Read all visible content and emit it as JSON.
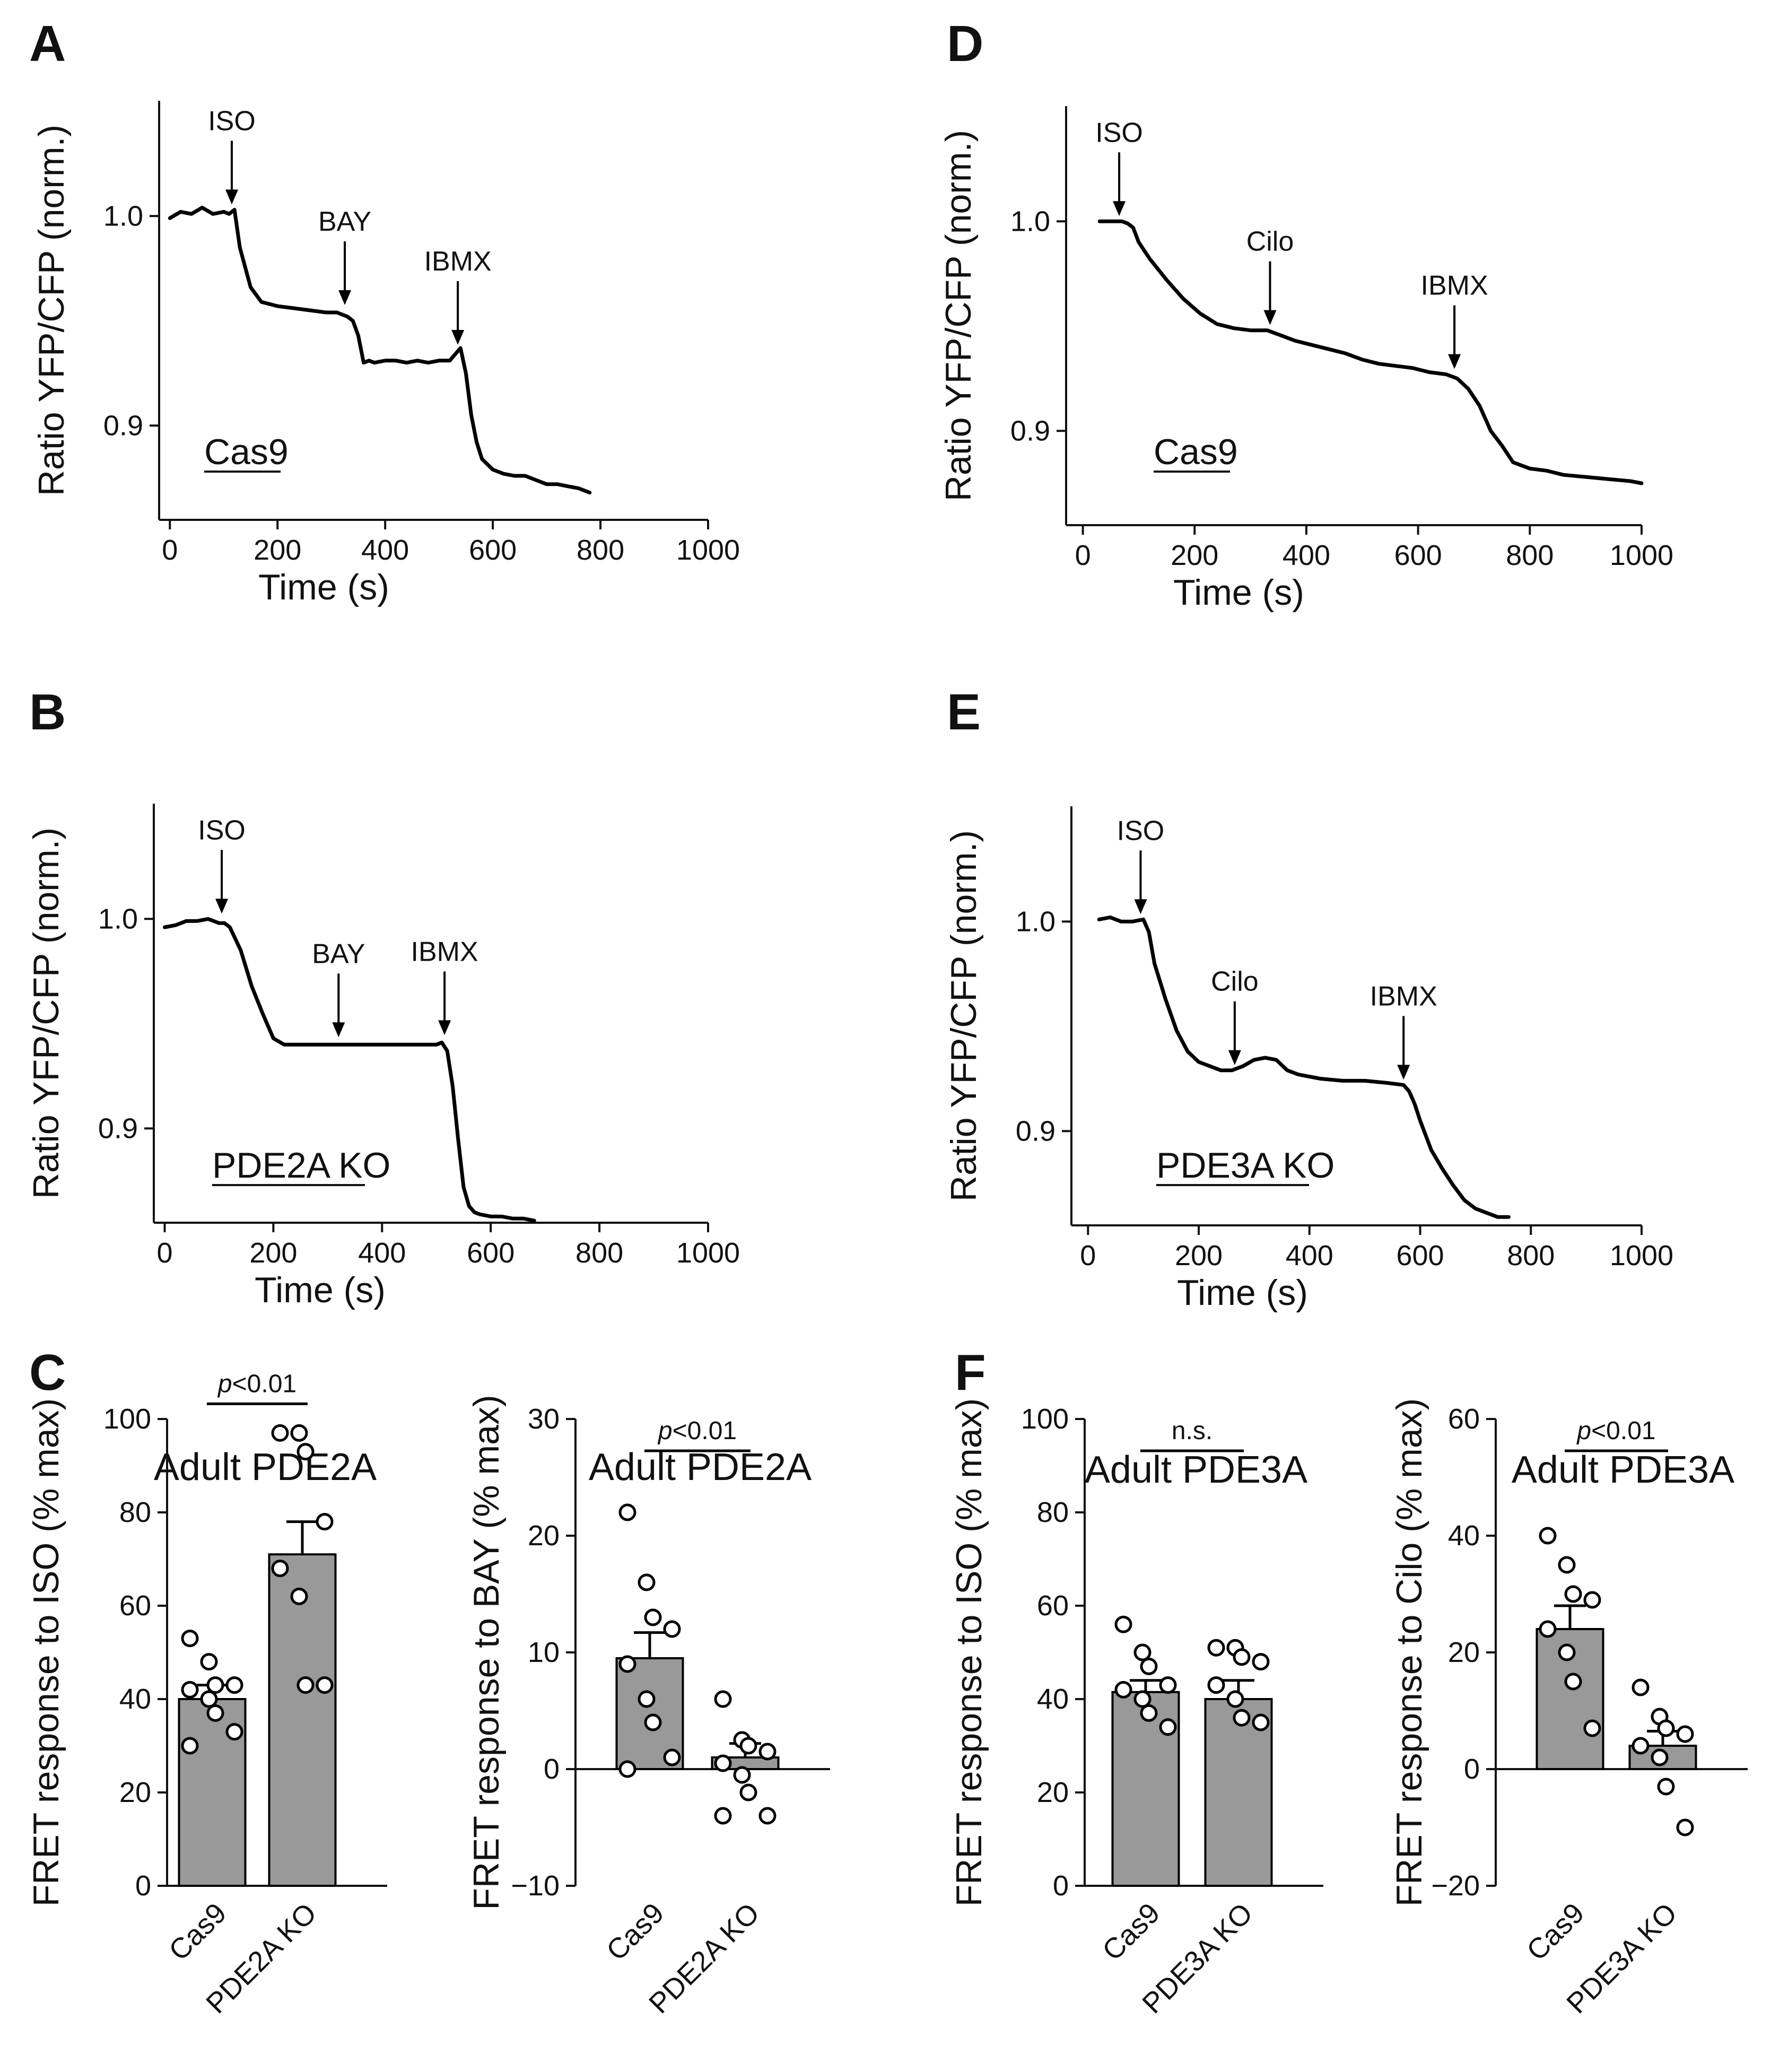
{
  "chart_data": [
    {
      "id": "A",
      "type": "line",
      "letter": "A",
      "ylabel": "Ratio YFP/CFP (norm.)",
      "xlabel": "Time (s)",
      "xlim": [
        -20,
        1000
      ],
      "ylim": [
        0.855,
        1.055
      ],
      "xticks": [
        0,
        200,
        400,
        600,
        800,
        1000
      ],
      "yticks": [
        0.9,
        1.0
      ],
      "ytick_labels": [
        "0.9",
        "1.0"
      ],
      "label": "Cas9",
      "series": [
        {
          "name": "Cas9",
          "x": [
            0,
            20,
            40,
            60,
            80,
            100,
            110,
            120,
            130,
            150,
            170,
            200,
            230,
            260,
            290,
            310,
            320,
            330,
            340,
            350,
            360,
            370,
            380,
            400,
            420,
            440,
            460,
            480,
            500,
            520,
            530,
            540,
            550,
            560,
            570,
            580,
            600,
            620,
            640,
            660,
            680,
            700,
            720,
            740,
            760,
            780
          ],
          "y": [
            0.999,
            1.002,
            1.001,
            1.004,
            1.001,
            1.002,
            1.001,
            1.003,
            0.985,
            0.966,
            0.959,
            0.957,
            0.956,
            0.955,
            0.954,
            0.954,
            0.953,
            0.952,
            0.95,
            0.943,
            0.93,
            0.931,
            0.93,
            0.931,
            0.931,
            0.93,
            0.931,
            0.93,
            0.931,
            0.931,
            0.934,
            0.937,
            0.925,
            0.905,
            0.892,
            0.884,
            0.879,
            0.877,
            0.876,
            0.876,
            0.874,
            0.872,
            0.872,
            0.871,
            0.87,
            0.868
          ]
        }
      ],
      "annotations": [
        {
          "label": "ISO",
          "x": 115,
          "y": 1.003
        },
        {
          "label": "BAY",
          "x": 325,
          "y": 0.955
        },
        {
          "label": "IBMX",
          "x": 535,
          "y": 0.936
        }
      ]
    },
    {
      "id": "B",
      "type": "line",
      "letter": "B",
      "ylabel": "Ratio YFP/CFP (norm.)",
      "xlabel": "Time (s)",
      "xlim": [
        -20,
        1000
      ],
      "ylim": [
        0.855,
        1.055
      ],
      "xticks": [
        0,
        200,
        400,
        600,
        800,
        1000
      ],
      "yticks": [
        0.9,
        1.0
      ],
      "ytick_labels": [
        "0.9",
        "1.0"
      ],
      "label": "PDE2A KO",
      "series": [
        {
          "name": "PDE2A KO",
          "x": [
            0,
            20,
            40,
            60,
            80,
            100,
            110,
            120,
            140,
            160,
            180,
            200,
            220,
            240,
            260,
            300,
            340,
            380,
            420,
            460,
            500,
            510,
            520,
            530,
            540,
            550,
            560,
            570,
            580,
            600,
            620,
            640,
            660,
            680
          ],
          "y": [
            0.996,
            0.997,
            0.999,
            0.999,
            1.0,
            0.998,
            0.998,
            0.996,
            0.985,
            0.968,
            0.955,
            0.943,
            0.94,
            0.94,
            0.94,
            0.94,
            0.94,
            0.94,
            0.94,
            0.94,
            0.94,
            0.941,
            0.937,
            0.92,
            0.895,
            0.872,
            0.863,
            0.86,
            0.859,
            0.858,
            0.858,
            0.857,
            0.857,
            0.856
          ]
        }
      ],
      "annotations": [
        {
          "label": "ISO",
          "x": 105,
          "y": 1.0
        },
        {
          "label": "BAY",
          "x": 320,
          "y": 0.941
        },
        {
          "label": "IBMX",
          "x": 515,
          "y": 0.942
        }
      ]
    },
    {
      "id": "C1",
      "type": "bar",
      "letter": "C",
      "title": "Adult PDE2A",
      "ylabel": "FRET response to ISO (% max)",
      "ylim": [
        0,
        100
      ],
      "yticks": [
        0,
        20,
        40,
        60,
        80,
        100
      ],
      "categories": [
        "Cas9",
        "PDE2A KO"
      ],
      "values": [
        40,
        71
      ],
      "errors": [
        3,
        7
      ],
      "points": [
        [
          53,
          48,
          43,
          43,
          42,
          40,
          37,
          33,
          30
        ],
        [
          97,
          97,
          93,
          78,
          68,
          62,
          43,
          43
        ]
      ],
      "significance": "p<0.01"
    },
    {
      "id": "C2",
      "type": "bar",
      "title": "Adult PDE2A",
      "ylabel": "FRET response to BAY (% max)",
      "ylim": [
        -10,
        30
      ],
      "yticks": [
        -10,
        0,
        10,
        20,
        30
      ],
      "categories": [
        "Cas9",
        "PDE2A KO"
      ],
      "values": [
        9.5,
        1
      ],
      "errors": [
        2.2,
        1.2
      ],
      "points": [
        [
          22,
          16,
          13,
          12,
          9,
          6,
          4,
          1,
          0
        ],
        [
          6,
          2.5,
          2,
          1.5,
          0.5,
          -0.5,
          -2,
          -4,
          -4
        ]
      ],
      "significance": "p<0.01"
    },
    {
      "id": "D",
      "type": "line",
      "letter": "D",
      "ylabel": "Ratio YFP/CFP (norm.)",
      "xlabel": "Time (s)",
      "xlim": [
        -30,
        1000
      ],
      "ylim": [
        0.855,
        1.055
      ],
      "xticks": [
        0,
        200,
        400,
        600,
        800,
        1000
      ],
      "yticks": [
        0.9,
        1.0
      ],
      "ytick_labels": [
        "0.9",
        "1.0"
      ],
      "label": "Cas9",
      "series": [
        {
          "name": "Cas9",
          "x": [
            30,
            50,
            70,
            80,
            90,
            100,
            120,
            150,
            180,
            210,
            240,
            270,
            300,
            330,
            350,
            380,
            410,
            440,
            470,
            500,
            530,
            560,
            590,
            620,
            650,
            670,
            690,
            710,
            730,
            750,
            770,
            800,
            830,
            860,
            900,
            940,
            980,
            1000
          ],
          "y": [
            1.0,
            1.0,
            1.0,
            0.999,
            0.997,
            0.99,
            0.982,
            0.972,
            0.963,
            0.956,
            0.951,
            0.949,
            0.948,
            0.948,
            0.946,
            0.943,
            0.941,
            0.939,
            0.937,
            0.934,
            0.932,
            0.931,
            0.93,
            0.928,
            0.927,
            0.925,
            0.92,
            0.912,
            0.9,
            0.893,
            0.885,
            0.882,
            0.881,
            0.879,
            0.878,
            0.877,
            0.876,
            0.875
          ]
        }
      ],
      "annotations": [
        {
          "label": "ISO",
          "x": 65,
          "y": 1.0
        },
        {
          "label": "Cilo",
          "x": 335,
          "y": 0.948
        },
        {
          "label": "IBMX",
          "x": 665,
          "y": 0.927
        }
      ]
    },
    {
      "id": "E",
      "type": "line",
      "letter": "E",
      "ylabel": "Ratio YFP/CFP (norm.)",
      "xlabel": "Time (s)",
      "xlim": [
        -30,
        1000
      ],
      "ylim": [
        0.855,
        1.055
      ],
      "xticks": [
        0,
        200,
        400,
        600,
        800,
        1000
      ],
      "yticks": [
        0.9,
        1.0
      ],
      "ytick_labels": [
        "0.9",
        "1.0"
      ],
      "label": "PDE3A KO",
      "series": [
        {
          "name": "PDE3A KO",
          "x": [
            20,
            40,
            60,
            80,
            100,
            110,
            120,
            140,
            160,
            180,
            200,
            220,
            240,
            260,
            280,
            300,
            320,
            340,
            360,
            380,
            420,
            460,
            500,
            540,
            570,
            580,
            590,
            600,
            620,
            640,
            660,
            680,
            700,
            720,
            740,
            760
          ],
          "y": [
            1.001,
            1.002,
            1.0,
            1.0,
            1.001,
            0.995,
            0.98,
            0.963,
            0.948,
            0.938,
            0.933,
            0.931,
            0.929,
            0.929,
            0.931,
            0.934,
            0.935,
            0.934,
            0.929,
            0.927,
            0.925,
            0.924,
            0.924,
            0.923,
            0.922,
            0.919,
            0.913,
            0.905,
            0.891,
            0.882,
            0.874,
            0.867,
            0.863,
            0.861,
            0.859,
            0.859
          ]
        }
      ],
      "annotations": [
        {
          "label": "ISO",
          "x": 95,
          "y": 1.001
        },
        {
          "label": "Cilo",
          "x": 265,
          "y": 0.929
        },
        {
          "label": "IBMX",
          "x": 570,
          "y": 0.922
        }
      ]
    },
    {
      "id": "F1",
      "type": "bar",
      "letter": "F",
      "title": "Adult PDE3A",
      "ylabel": "FRET response to ISO (% max)",
      "ylim": [
        0,
        100
      ],
      "yticks": [
        0,
        20,
        40,
        60,
        80,
        100
      ],
      "categories": [
        "Cas9",
        "PDE3A KO"
      ],
      "values": [
        41.5,
        40
      ],
      "errors": [
        2.5,
        4
      ],
      "points": [
        [
          56,
          50,
          47,
          43,
          42,
          40,
          37,
          34
        ],
        [
          51,
          51,
          49,
          48,
          43,
          40,
          36,
          35
        ]
      ],
      "significance": "n.s."
    },
    {
      "id": "F2",
      "type": "bar",
      "title": "Adult PDE3A",
      "ylabel": "FRET response to Cilo (% max)",
      "ylim": [
        -20,
        60
      ],
      "yticks": [
        -20,
        0,
        20,
        40,
        60
      ],
      "categories": [
        "Cas9",
        "PDE3A KO"
      ],
      "values": [
        24,
        4
      ],
      "errors": [
        4,
        2.5
      ],
      "points": [
        [
          40,
          35,
          30,
          29,
          24,
          20,
          15,
          7
        ],
        [
          14,
          9,
          7,
          6,
          4,
          2,
          -3,
          -10
        ]
      ],
      "significance": "p<0.01"
    }
  ]
}
